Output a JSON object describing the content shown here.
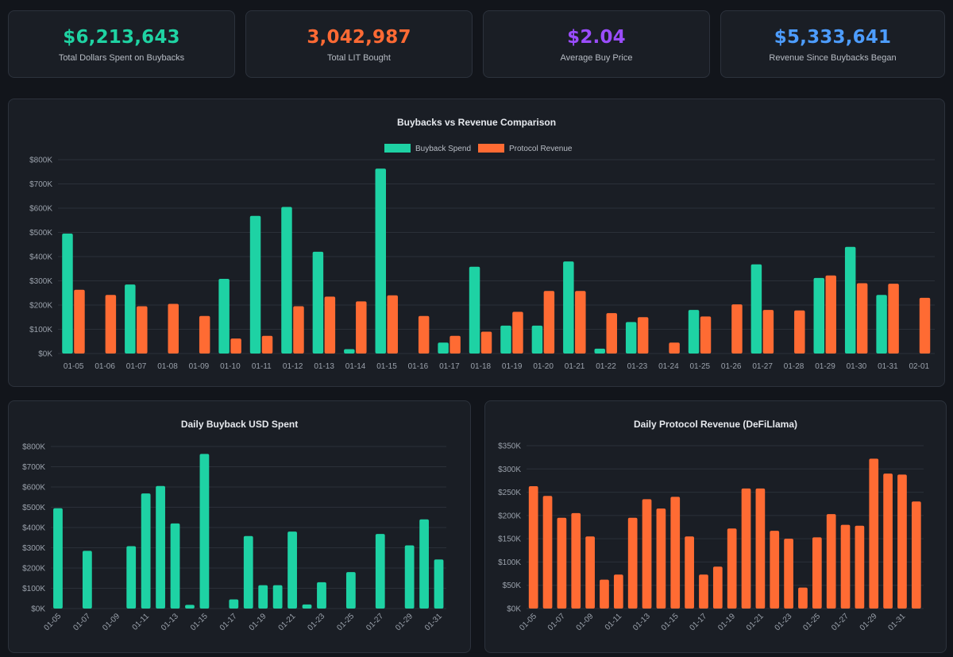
{
  "stats": [
    {
      "value": "$6,213,643",
      "label": "Total Dollars Spent on Buybacks",
      "color": "#1fd3a3"
    },
    {
      "value": "3,042,987",
      "label": "Total LIT Bought",
      "color": "#ff6a34"
    },
    {
      "value": "$2.04",
      "label": "Average Buy Price",
      "color": "#9b4dff"
    },
    {
      "value": "$5,333,641",
      "label": "Revenue Since Buybacks Began",
      "color": "#4d9dff"
    }
  ],
  "colors": {
    "buyback": "#1ed2a4",
    "revenue": "#ff6b33"
  },
  "chart_data": [
    {
      "type": "bar",
      "title": "Buybacks vs Revenue Comparison",
      "legend_position": "top",
      "categories": [
        "01-05",
        "01-06",
        "01-07",
        "01-08",
        "01-09",
        "01-10",
        "01-11",
        "01-12",
        "01-13",
        "01-14",
        "01-15",
        "01-16",
        "01-17",
        "01-18",
        "01-19",
        "01-20",
        "01-21",
        "01-22",
        "01-23",
        "01-24",
        "01-25",
        "01-26",
        "01-27",
        "01-28",
        "01-29",
        "01-30",
        "01-31",
        "02-01"
      ],
      "series": [
        {
          "name": "Buyback Spend",
          "values": [
            495000,
            0,
            285000,
            0,
            0,
            308000,
            568000,
            605000,
            420000,
            18000,
            763000,
            0,
            45000,
            358000,
            115000,
            115000,
            380000,
            20000,
            130000,
            0,
            180000,
            0,
            368000,
            0,
            312000,
            440000,
            242000,
            0
          ]
        },
        {
          "name": "Protocol Revenue",
          "values": [
            263000,
            242000,
            195000,
            205000,
            155000,
            62000,
            73000,
            195000,
            235000,
            215000,
            240000,
            155000,
            73000,
            90000,
            172000,
            258000,
            258000,
            167000,
            150000,
            45000,
            153000,
            203000,
            180000,
            178000,
            322000,
            290000,
            288000,
            230000
          ]
        }
      ],
      "ylim": [
        0,
        800000
      ],
      "yticks": [
        "$0K",
        "$100K",
        "$200K",
        "$300K",
        "$400K",
        "$500K",
        "$600K",
        "$700K",
        "$800K"
      ],
      "grid": true
    },
    {
      "type": "bar",
      "title": "Daily Buyback USD Spent",
      "categories": [
        "01-05",
        "01-06",
        "01-07",
        "01-08",
        "01-09",
        "01-10",
        "01-11",
        "01-12",
        "01-13",
        "01-14",
        "01-15",
        "01-16",
        "01-17",
        "01-18",
        "01-19",
        "01-20",
        "01-21",
        "01-22",
        "01-23",
        "01-24",
        "01-25",
        "01-26",
        "01-27",
        "01-28",
        "01-29",
        "01-30",
        "01-31"
      ],
      "xtick_labels": [
        "01-05",
        "01-07",
        "01-09",
        "01-11",
        "01-13",
        "01-15",
        "01-17",
        "01-19",
        "01-21",
        "01-23",
        "01-25",
        "01-27",
        "01-29",
        "01-31"
      ],
      "values": [
        495000,
        0,
        285000,
        0,
        0,
        308000,
        568000,
        605000,
        420000,
        18000,
        763000,
        0,
        45000,
        358000,
        115000,
        115000,
        380000,
        20000,
        130000,
        0,
        180000,
        0,
        368000,
        0,
        312000,
        440000,
        242000
      ],
      "ylim": [
        0,
        800000
      ],
      "yticks": [
        "$0K",
        "$100K",
        "$200K",
        "$300K",
        "$400K",
        "$500K",
        "$600K",
        "$700K",
        "$800K"
      ],
      "grid": true
    },
    {
      "type": "bar",
      "title": "Daily Protocol Revenue (DeFiLlama)",
      "categories": [
        "01-05",
        "01-06",
        "01-07",
        "01-08",
        "01-09",
        "01-10",
        "01-11",
        "01-12",
        "01-13",
        "01-14",
        "01-15",
        "01-16",
        "01-17",
        "01-18",
        "01-19",
        "01-20",
        "01-21",
        "01-22",
        "01-23",
        "01-24",
        "01-25",
        "01-26",
        "01-27",
        "01-28",
        "01-29",
        "01-30",
        "01-31",
        "02-01"
      ],
      "xtick_labels": [
        "01-05",
        "01-07",
        "01-09",
        "01-11",
        "01-13",
        "01-15",
        "01-17",
        "01-19",
        "01-21",
        "01-23",
        "01-25",
        "01-27",
        "01-29",
        "01-31"
      ],
      "values": [
        263000,
        242000,
        195000,
        205000,
        155000,
        62000,
        73000,
        195000,
        235000,
        215000,
        240000,
        155000,
        73000,
        90000,
        172000,
        258000,
        258000,
        167000,
        150000,
        45000,
        153000,
        203000,
        180000,
        178000,
        322000,
        290000,
        288000,
        230000
      ],
      "ylim": [
        0,
        350000
      ],
      "yticks": [
        "$0K",
        "$50K",
        "$100K",
        "$150K",
        "$200K",
        "$250K",
        "$300K",
        "$350K"
      ],
      "grid": true
    }
  ]
}
